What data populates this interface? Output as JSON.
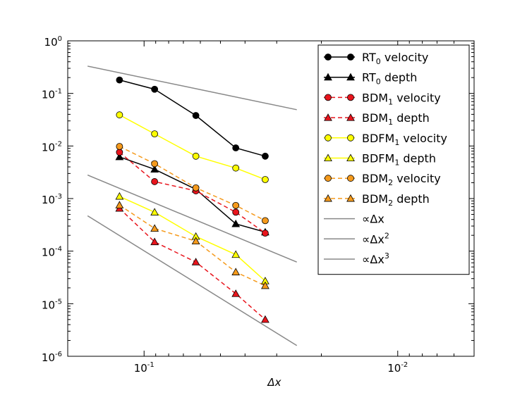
{
  "chart_data": {
    "type": "line",
    "title": "",
    "xlabel": "Δx",
    "ylabel": "",
    "x_scale": "log-reversed",
    "y_scale": "log",
    "xlim": [
      0.2,
      0.005
    ],
    "ylim": [
      1e-06,
      1
    ],
    "grid": false,
    "legend_position": "top-right",
    "x_ticks": [
      {
        "value": 0.1,
        "base": "10",
        "exp": "-1"
      },
      {
        "value": 0.01,
        "base": "10",
        "exp": "-2"
      }
    ],
    "y_ticks": [
      {
        "value": 1,
        "base": "10",
        "exp": "0"
      },
      {
        "value": 0.1,
        "base": "10",
        "exp": "-1"
      },
      {
        "value": 0.01,
        "base": "10",
        "exp": "-2"
      },
      {
        "value": 0.001,
        "base": "10",
        "exp": "-3"
      },
      {
        "value": 0.0001,
        "base": "10",
        "exp": "-4"
      },
      {
        "value": 1e-05,
        "base": "10",
        "exp": "-5"
      },
      {
        "value": 1e-06,
        "base": "10",
        "exp": "-6"
      }
    ],
    "x": [
      0.125,
      0.0909,
      0.0625,
      0.0435,
      0.0333
    ],
    "series": [
      {
        "name": "RT",
        "sub": "0",
        "suffix": " velocity",
        "color": "#000000",
        "marker": "circle",
        "dash": false,
        "values": [
          0.18,
          0.12,
          0.038,
          0.0092,
          0.0064
        ]
      },
      {
        "name": "RT",
        "sub": "0",
        "suffix": " depth",
        "color": "#000000",
        "marker": "triangle",
        "dash": false,
        "values": [
          0.0062,
          0.0036,
          0.0015,
          0.00033,
          0.00023
        ]
      },
      {
        "name": "BDM",
        "sub": "1",
        "suffix": " velocity",
        "color": "#e8141c",
        "marker": "circle",
        "dash": true,
        "values": [
          0.0076,
          0.0021,
          0.0014,
          0.00055,
          0.00022
        ]
      },
      {
        "name": "BDM",
        "sub": "1",
        "suffix": " depth",
        "color": "#e8141c",
        "marker": "triangle",
        "dash": true,
        "values": [
          0.00065,
          0.00015,
          6.2e-05,
          1.55e-05,
          5e-06
        ]
      },
      {
        "name": "BDFM",
        "sub": "1",
        "suffix": " velocity",
        "color": "#ffff00",
        "marker": "circle",
        "dash": false,
        "values": [
          0.039,
          0.017,
          0.0064,
          0.0038,
          0.0023
        ]
      },
      {
        "name": "BDFM",
        "sub": "1",
        "suffix": " depth",
        "color": "#ffff00",
        "marker": "triangle",
        "dash": false,
        "values": [
          0.0011,
          0.00055,
          0.00019,
          8.6e-05,
          2.7e-05
        ]
      },
      {
        "name": "BDM",
        "sub": "2",
        "suffix": " velocity",
        "color": "#f59a1c",
        "marker": "circle",
        "dash": true,
        "values": [
          0.0098,
          0.0046,
          0.0016,
          0.00074,
          0.00038
        ]
      },
      {
        "name": "BDM",
        "sub": "2",
        "suffix": " depth",
        "color": "#f59a1c",
        "marker": "triangle",
        "dash": true,
        "values": [
          0.00075,
          0.00027,
          0.000155,
          4e-05,
          2.2e-05
        ]
      }
    ],
    "reference_lines": [
      {
        "label": "∝Δx",
        "exp": "",
        "color": "#888888",
        "x": [
          0.167,
          0.025
        ],
        "y": [
          0.33,
          0.049
        ]
      },
      {
        "label": "∝Δx",
        "exp": "2",
        "color": "#888888",
        "x": [
          0.167,
          0.025
        ],
        "y": [
          0.0028,
          6.2e-05
        ]
      },
      {
        "label": "∝Δx",
        "exp": "3",
        "color": "#888888",
        "x": [
          0.167,
          0.025
        ],
        "y": [
          0.00047,
          1.6e-06
        ]
      }
    ]
  }
}
